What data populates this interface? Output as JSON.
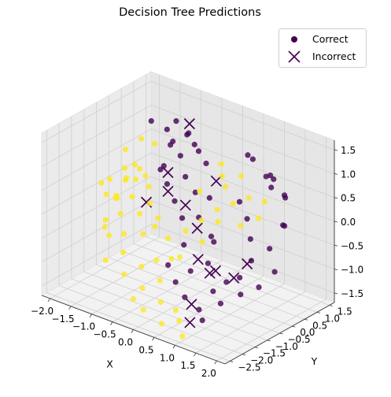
{
  "chart_data": {
    "type": "scatter",
    "projection": "3d",
    "title": "Decision Tree Predictions",
    "xlabel": "X",
    "ylabel": "Y",
    "zlabel": "",
    "xlim": [
      -2.2,
      2.2
    ],
    "ylim": [
      -2.7,
      1.7
    ],
    "zlim": [
      -1.7,
      1.7
    ],
    "xticks": [
      -2.0,
      -1.5,
      -1.0,
      -0.5,
      0.0,
      0.5,
      1.0,
      1.5,
      2.0
    ],
    "yticks": [
      -2.5,
      -2.0,
      -1.5,
      -1.0,
      -0.5,
      0.0,
      0.5,
      1.0,
      1.5
    ],
    "zticks": [
      -1.5,
      -1.0,
      -0.5,
      0.0,
      0.5,
      1.0,
      1.5
    ],
    "xtick_labels": [
      "−2.0",
      "−1.5",
      "−1.0",
      "−0.5",
      "0.0",
      "0.5",
      "1.0",
      "1.5",
      "2.0"
    ],
    "ytick_labels": [
      "−2.5",
      "−2.0",
      "−1.5",
      "−1.0",
      "−0.5",
      "0.0",
      "0.5",
      "1.0",
      "1.5"
    ],
    "ztick_labels": [
      "−1.5",
      "−1.0",
      "−0.5",
      "0.0",
      "0.5",
      "1.0",
      "1.5"
    ],
    "grid": true,
    "legend_position": "top-right",
    "class_colors": {
      "class_0": "#440154",
      "class_1": "#fde725"
    },
    "series": [
      {
        "name": "Correct",
        "marker": "circle",
        "color_by": "predicted_class",
        "points": [
          [
            -1.1,
            0.5,
            1.2,
            0
          ],
          [
            -0.9,
            0.3,
            1.0,
            0
          ],
          [
            -0.8,
            0.8,
            1.1,
            0
          ],
          [
            -0.6,
            0.2,
            0.9,
            0
          ],
          [
            -1.2,
            0.9,
            0.8,
            0
          ],
          [
            -0.7,
            1.1,
            0.7,
            0
          ],
          [
            -0.5,
            0.6,
            1.05,
            0
          ],
          [
            -1.0,
            1.2,
            0.95,
            0
          ],
          [
            -0.9,
            -0.1,
            0.6,
            0
          ],
          [
            -0.6,
            0.4,
            0.4,
            0
          ],
          [
            -0.4,
            0.9,
            0.6,
            0
          ],
          [
            -0.8,
            0.0,
            0.3,
            0
          ],
          [
            -0.3,
            0.3,
            0.2,
            0
          ],
          [
            -0.5,
            -0.2,
            0.1,
            0
          ],
          [
            -0.2,
            0.7,
            0.0,
            0
          ],
          [
            -0.1,
            0.1,
            -0.2,
            0
          ],
          [
            -1.3,
            0.2,
            1.4,
            0
          ],
          [
            -1.0,
            0.7,
            1.35,
            0
          ],
          [
            -0.7,
            -0.3,
            0.8,
            0
          ],
          [
            -0.2,
            -0.4,
            -0.1,
            0
          ],
          [
            0.6,
            0.9,
            1.1,
            0
          ],
          [
            0.9,
            0.6,
            1.2,
            0
          ],
          [
            1.2,
            0.8,
            0.9,
            0
          ],
          [
            1.4,
            0.5,
            0.8,
            0
          ],
          [
            1.1,
            1.1,
            0.7,
            0
          ],
          [
            0.8,
            1.3,
            0.6,
            0
          ],
          [
            1.5,
            0.9,
            0.5,
            0
          ],
          [
            1.3,
            1.2,
            0.4,
            0
          ],
          [
            0.7,
            0.4,
            0.3,
            0
          ],
          [
            1.0,
            0.2,
            0.1,
            0
          ],
          [
            1.2,
            0.0,
            -0.2,
            0
          ],
          [
            1.4,
            -0.3,
            -0.5,
            0
          ],
          [
            1.6,
            0.1,
            -0.3,
            0
          ],
          [
            1.3,
            -0.6,
            -0.8,
            0
          ],
          [
            1.1,
            -0.8,
            -0.9,
            0
          ],
          [
            0.9,
            -1.0,
            -1.1,
            0
          ],
          [
            0.6,
            -0.7,
            -0.7,
            0
          ],
          [
            0.3,
            -0.9,
            -0.9,
            0
          ],
          [
            0.0,
            -1.0,
            -1.2,
            0
          ],
          [
            -0.3,
            -0.8,
            -1.0,
            0
          ],
          [
            0.4,
            -1.3,
            -1.3,
            0
          ],
          [
            0.8,
            -1.4,
            -1.4,
            0
          ],
          [
            1.2,
            -1.2,
            -1.2,
            0
          ],
          [
            1.5,
            -0.9,
            -1.0,
            0
          ],
          [
            1.7,
            -0.5,
            -0.9,
            0
          ],
          [
            1.8,
            0.3,
            0.2,
            0
          ],
          [
            1.6,
            0.7,
            0.0,
            0
          ],
          [
            0.2,
            0.1,
            -0.5,
            0
          ],
          [
            0.5,
            -0.3,
            -0.4,
            0
          ],
          [
            -0.1,
            -0.5,
            -0.6,
            0
          ],
          [
            1.0,
            -1.6,
            -1.5,
            0
          ],
          [
            1.9,
            -0.2,
            -0.6,
            0
          ],
          [
            -1.3,
            -0.8,
            0.5,
            1
          ],
          [
            -1.5,
            -0.5,
            0.3,
            1
          ],
          [
            -1.7,
            -0.2,
            0.4,
            1
          ],
          [
            -1.4,
            -1.0,
            0.1,
            1
          ],
          [
            -1.6,
            -0.7,
            0.0,
            1
          ],
          [
            -1.2,
            -1.2,
            -0.1,
            1
          ],
          [
            -1.8,
            -0.4,
            -0.2,
            1
          ],
          [
            -1.1,
            -0.9,
            0.2,
            1
          ],
          [
            -1.5,
            -1.3,
            -0.3,
            1
          ],
          [
            -1.3,
            -1.5,
            -0.5,
            1
          ],
          [
            -1.0,
            -1.4,
            -0.4,
            1
          ],
          [
            -1.7,
            -1.0,
            -0.6,
            1
          ],
          [
            -1.9,
            -0.8,
            0.2,
            1
          ],
          [
            -2.0,
            -0.3,
            0.1,
            1
          ],
          [
            -1.4,
            -0.3,
            0.6,
            1
          ],
          [
            -1.1,
            -0.6,
            0.7,
            1
          ],
          [
            -0.8,
            -1.1,
            0.0,
            1
          ],
          [
            -0.9,
            -1.6,
            -0.7,
            1
          ],
          [
            -0.6,
            -1.3,
            -0.3,
            1
          ],
          [
            -1.2,
            -1.8,
            -0.9,
            1
          ],
          [
            -0.7,
            -1.9,
            -1.0,
            1
          ],
          [
            -0.4,
            -1.7,
            -0.8,
            1
          ],
          [
            -0.2,
            -2.0,
            -1.1,
            1
          ],
          [
            0.1,
            -1.8,
            -0.9,
            1
          ],
          [
            0.3,
            -2.1,
            -1.2,
            1
          ],
          [
            0.6,
            -2.0,
            -1.3,
            1
          ],
          [
            0.0,
            -2.3,
            -1.4,
            1
          ],
          [
            -0.3,
            -2.2,
            -1.3,
            1
          ],
          [
            0.5,
            -2.4,
            -1.5,
            1
          ],
          [
            0.8,
            -2.2,
            -1.4,
            1
          ],
          [
            1.0,
            -2.4,
            -1.6,
            1
          ],
          [
            0.2,
            -1.5,
            -0.5,
            1
          ],
          [
            -0.5,
            -1.0,
            -0.2,
            1
          ],
          [
            -0.3,
            -1.2,
            0.1,
            1
          ],
          [
            0.0,
            -1.3,
            -0.2,
            1
          ],
          [
            0.3,
            -1.1,
            0.0,
            1
          ],
          [
            0.5,
            -0.8,
            0.2,
            1
          ],
          [
            0.7,
            -0.5,
            0.4,
            1
          ],
          [
            0.9,
            -0.2,
            0.5,
            1
          ],
          [
            1.1,
            0.1,
            0.6,
            1
          ],
          [
            0.4,
            0.2,
            0.8,
            1
          ],
          [
            0.1,
            -0.2,
            0.5,
            1
          ],
          [
            0.2,
            0.5,
            0.9,
            1
          ],
          [
            0.6,
            0.0,
            0.7,
            1
          ],
          [
            -1.6,
            0.3,
            0.9,
            1
          ],
          [
            -1.8,
            0.0,
            0.7,
            1
          ],
          [
            -1.4,
            0.5,
            0.8,
            1
          ],
          [
            -1.2,
            -0.2,
            0.4,
            1
          ],
          [
            -1.0,
            -0.4,
            0.3,
            1
          ],
          [
            -0.8,
            -0.7,
            0.1,
            1
          ],
          [
            -1.5,
            -0.1,
            0.2,
            1
          ],
          [
            -1.9,
            -0.6,
            -0.1,
            1
          ],
          [
            0.9,
            -0.8,
            0.3,
            1
          ],
          [
            1.2,
            -0.4,
            0.2,
            1
          ],
          [
            1.4,
            0.0,
            0.3,
            1
          ],
          [
            0.7,
            -1.1,
            -0.1,
            1
          ],
          [
            0.4,
            -1.5,
            -0.4,
            1
          ],
          [
            -0.1,
            -1.6,
            -0.6,
            1
          ],
          [
            1.3,
            0.4,
            0.5,
            1
          ],
          [
            0.8,
            0.3,
            0.9,
            1
          ]
        ]
      },
      {
        "name": "Incorrect",
        "marker": "x",
        "color_by": "predicted_class",
        "points": [
          [
            -0.8,
            0.9,
            1.3,
            0
          ],
          [
            -0.6,
            -0.3,
            0.3,
            0
          ],
          [
            -1.0,
            -0.5,
            0.0,
            0
          ],
          [
            -0.9,
            0.2,
            0.45,
            0
          ],
          [
            0.2,
            0.3,
            0.6,
            0
          ],
          [
            0.4,
            -0.8,
            0.0,
            0
          ],
          [
            0.6,
            -1.1,
            -0.5,
            0
          ],
          [
            0.9,
            -0.9,
            -0.7,
            0
          ],
          [
            1.0,
            -1.3,
            -0.6,
            0
          ],
          [
            1.1,
            -0.5,
            -0.9,
            0
          ],
          [
            1.3,
            -0.3,
            -0.6,
            0
          ],
          [
            0.8,
            -1.7,
            -1.2,
            0
          ],
          [
            1.0,
            -2.1,
            -1.4,
            0
          ],
          [
            -0.3,
            -0.1,
            0.05,
            0
          ]
        ]
      }
    ]
  },
  "legend": {
    "items": [
      {
        "label": "Correct",
        "marker": "circle",
        "color": "#440154"
      },
      {
        "label": "Incorrect",
        "marker": "x",
        "color": "#440154"
      }
    ]
  }
}
